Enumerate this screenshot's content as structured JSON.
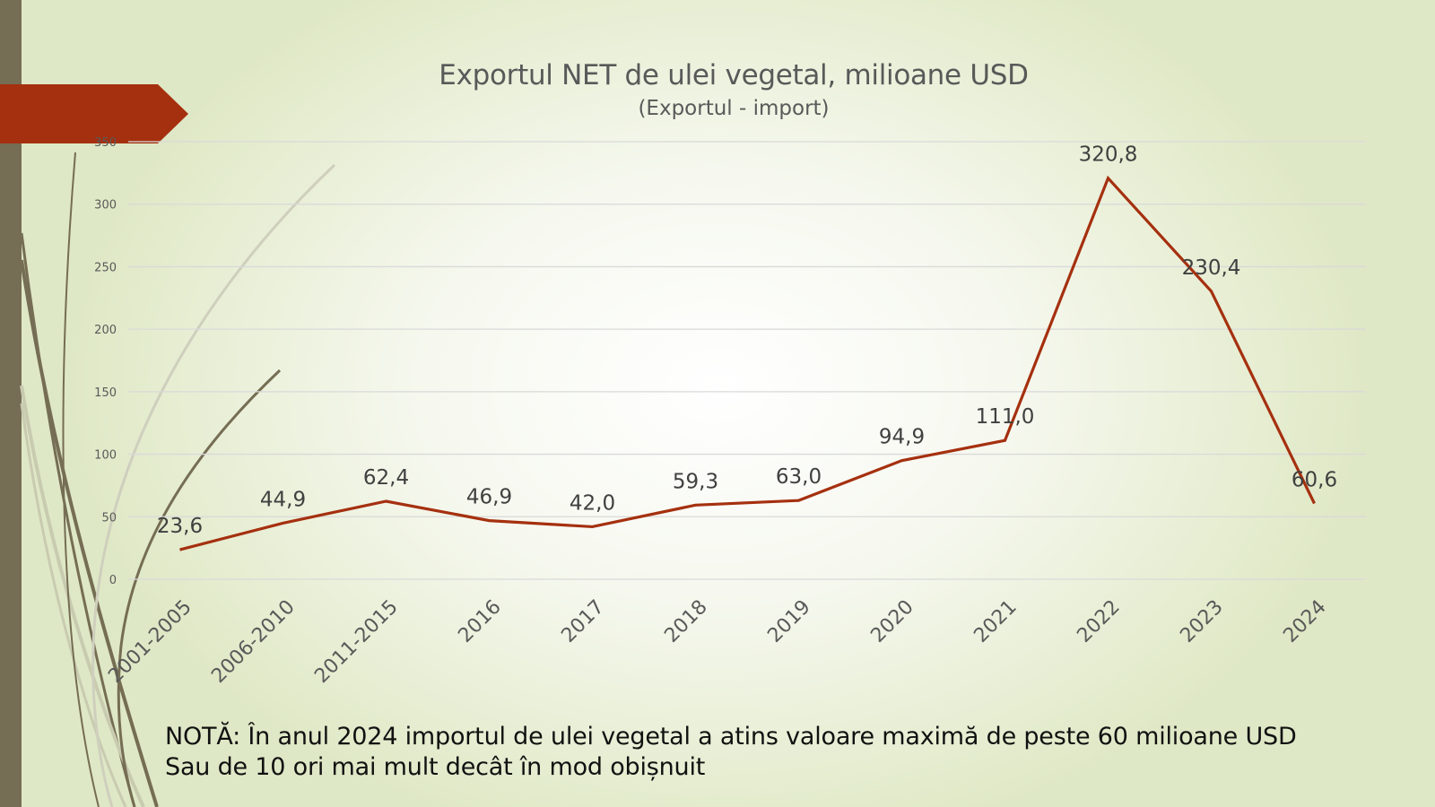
{
  "chart_data": {
    "type": "line",
    "title": "Exportul NET de ulei vegetal, milioane USD",
    "subtitle": "(Exportul - import)",
    "xlabel": "",
    "ylabel": "",
    "categories": [
      "2001-2005",
      "2006-2010",
      "2011-2015",
      "2016",
      "2017",
      "2018",
      "2019",
      "2020",
      "2021",
      "2022",
      "2023",
      "2024"
    ],
    "series": [
      {
        "name": "Exportul NET",
        "values": [
          23.6,
          44.9,
          62.4,
          46.9,
          42.0,
          59.3,
          63.0,
          94.9,
          111.0,
          320.8,
          230.4,
          60.6
        ],
        "labels": [
          "23,6",
          "44,9",
          "62,4",
          "46,9",
          "42,0",
          "59,3",
          "63,0",
          "94,9",
          "111,0",
          "320,8",
          "230,4",
          "60,6"
        ],
        "color": "#a5300f"
      }
    ],
    "ylim": [
      0,
      350
    ],
    "yticks": [
      0,
      50,
      100,
      150,
      200,
      250,
      300,
      350
    ],
    "grid": true,
    "legend": "none"
  },
  "note": {
    "line1": "NOTĂ: În anul 2024 importul de ulei vegetal a atins valoare maximă de peste 60 milioane USD",
    "line2": "Sau de 10 ori mai mult decât în mod obișnuit"
  },
  "colors": {
    "accent": "#a5300f",
    "sidebar": "#756d54",
    "gridline": "#d9d9d9",
    "text": "#595959"
  }
}
